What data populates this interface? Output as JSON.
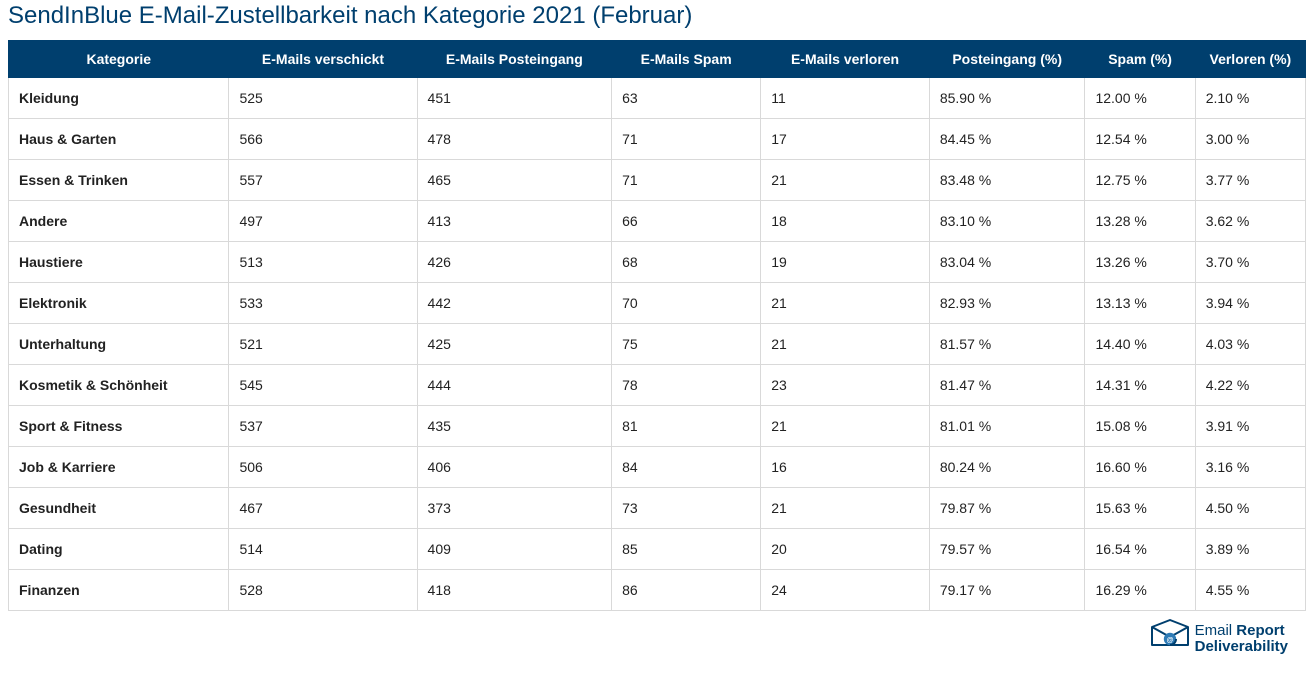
{
  "title": "SendInBlue E-Mail-Zustellbarkeit nach Kategorie 2021 (Februar)",
  "colors": {
    "header_bg": "#003f6e",
    "header_fg": "#ffffff",
    "title_color": "#003f6e",
    "cell_border": "#d9d9d9",
    "body_bg": "#ffffff",
    "text_color": "#222222",
    "logo_primary": "#003f6e",
    "logo_accent": "#2e7bb6"
  },
  "typography": {
    "title_fontsize": 24,
    "header_fontsize": 14,
    "cell_fontsize": 14,
    "title_weight": 400,
    "header_weight": 700,
    "category_weight": 700
  },
  "table": {
    "type": "table",
    "col_widths_pct": [
      17,
      14.5,
      15,
      11.5,
      13,
      12,
      8.5,
      8.5
    ],
    "columns": [
      "Kategorie",
      "E-Mails verschickt",
      "E-Mails Posteingang",
      "E-Mails Spam",
      "E-Mails verloren",
      "Posteingang (%)",
      "Spam (%)",
      "Verloren (%)"
    ],
    "rows": [
      [
        "Kleidung",
        "525",
        "451",
        "63",
        "11",
        "85.90 %",
        "12.00 %",
        "2.10 %"
      ],
      [
        "Haus & Garten",
        "566",
        "478",
        "71",
        "17",
        "84.45 %",
        "12.54 %",
        "3.00 %"
      ],
      [
        "Essen & Trinken",
        "557",
        "465",
        "71",
        "21",
        "83.48 %",
        "12.75 %",
        "3.77 %"
      ],
      [
        "Andere",
        "497",
        "413",
        "66",
        "18",
        "83.10 %",
        "13.28 %",
        "3.62 %"
      ],
      [
        "Haustiere",
        "513",
        "426",
        "68",
        "19",
        "83.04 %",
        "13.26 %",
        "3.70 %"
      ],
      [
        "Elektronik",
        "533",
        "442",
        "70",
        "21",
        "82.93 %",
        "13.13 %",
        "3.94 %"
      ],
      [
        "Unterhaltung",
        "521",
        "425",
        "75",
        "21",
        "81.57 %",
        "14.40 %",
        "4.03 %"
      ],
      [
        "Kosmetik & Schönheit",
        "545",
        "444",
        "78",
        "23",
        "81.47 %",
        "14.31 %",
        "4.22 %"
      ],
      [
        "Sport & Fitness",
        "537",
        "435",
        "81",
        "21",
        "81.01 %",
        "15.08 %",
        "3.91 %"
      ],
      [
        "Job & Karriere",
        "506",
        "406",
        "84",
        "16",
        "80.24 %",
        "16.60 %",
        "3.16 %"
      ],
      [
        "Gesundheit",
        "467",
        "373",
        "73",
        "21",
        "79.87 %",
        "15.63 %",
        "4.50 %"
      ],
      [
        "Dating",
        "514",
        "409",
        "85",
        "20",
        "79.57 %",
        "16.54 %",
        "3.89 %"
      ],
      [
        "Finanzen",
        "528",
        "418",
        "86",
        "24",
        "79.17 %",
        "16.29 %",
        "4.55 %"
      ]
    ]
  },
  "logo": {
    "line1a": "Email ",
    "line1b": "Report",
    "line2": "Deliverability"
  }
}
